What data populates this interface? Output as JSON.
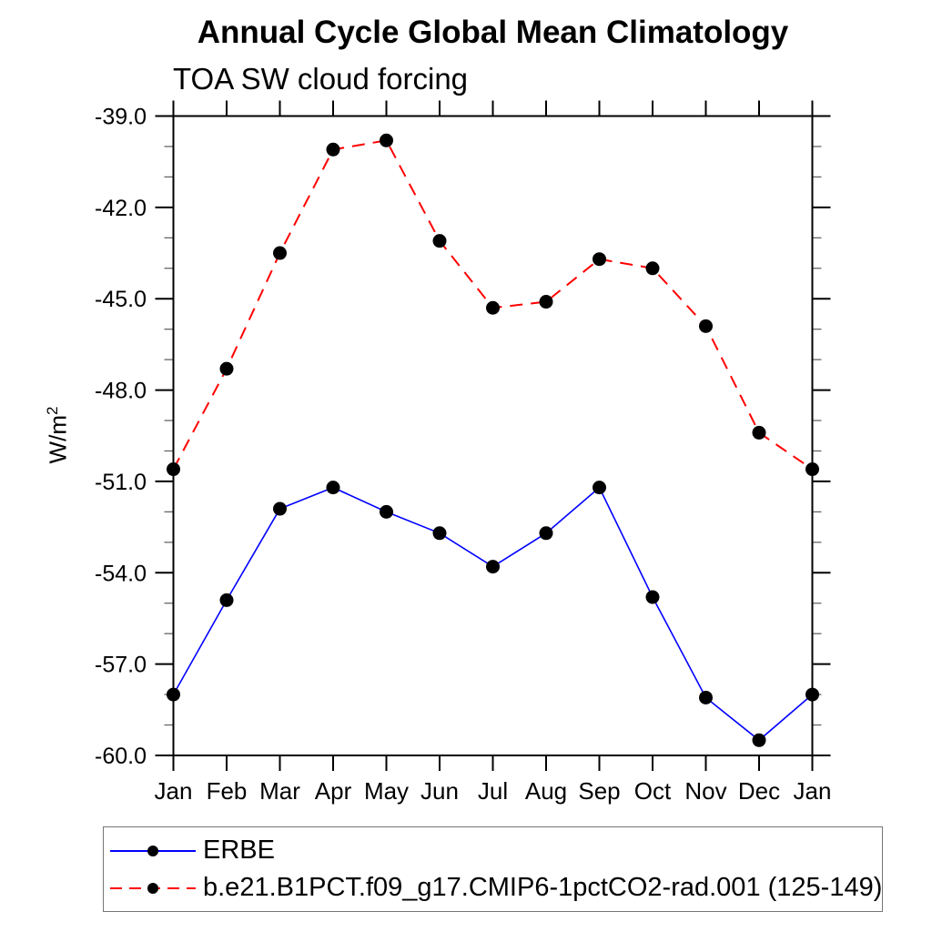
{
  "title": "Annual Cycle Global Mean Climatology",
  "subtitle": "TOA SW cloud forcing",
  "chart_data": {
    "type": "line",
    "title": "Annual Cycle Global Mean Climatology",
    "subtitle": "TOA SW cloud forcing",
    "ylabel": "W/m",
    "ylabel_superscript": "2",
    "xlabel": "",
    "categories": [
      "Jan",
      "Feb",
      "Mar",
      "Apr",
      "May",
      "Jun",
      "Jul",
      "Aug",
      "Sep",
      "Oct",
      "Nov",
      "Dec",
      "Jan"
    ],
    "ylim": [
      -60.0,
      -39.0
    ],
    "y_major_tick_step": 3.0,
    "y_minor_tick_step": 1.0,
    "y_tick_labels": [
      "-39.0",
      "-42.0",
      "-45.0",
      "-48.0",
      "-51.0",
      "-54.0",
      "-57.0",
      "-60.0"
    ],
    "y_tick_values": [
      -39.0,
      -42.0,
      -45.0,
      -48.0,
      -51.0,
      -54.0,
      -57.0,
      -60.0
    ],
    "grid": false,
    "legend_position": "bottom-left-box",
    "marker": "filled-circle",
    "marker_color": "#000000",
    "series": [
      {
        "name": "ERBE",
        "color": "#0000ff",
        "line_style": "solid",
        "values": [
          -58.0,
          -54.9,
          -51.9,
          -51.2,
          -52.0,
          -52.7,
          -53.8,
          -52.7,
          -51.2,
          -54.8,
          -58.1,
          -59.5,
          -58.0
        ]
      },
      {
        "name": "b.e21.B1PCT.f09_g17.CMIP6-1pctCO2-rad.001 (125-149)",
        "color": "#ff0000",
        "line_style": "dashed",
        "values": [
          -50.6,
          -47.3,
          -43.5,
          -40.1,
          -39.8,
          -43.1,
          -45.3,
          -45.1,
          -43.7,
          -44.0,
          -45.9,
          -49.4,
          -50.6
        ]
      }
    ]
  },
  "colors": {
    "axis": "#000000",
    "minor_tick": "#666666",
    "legend_border": "#767676",
    "background": "#ffffff"
  }
}
